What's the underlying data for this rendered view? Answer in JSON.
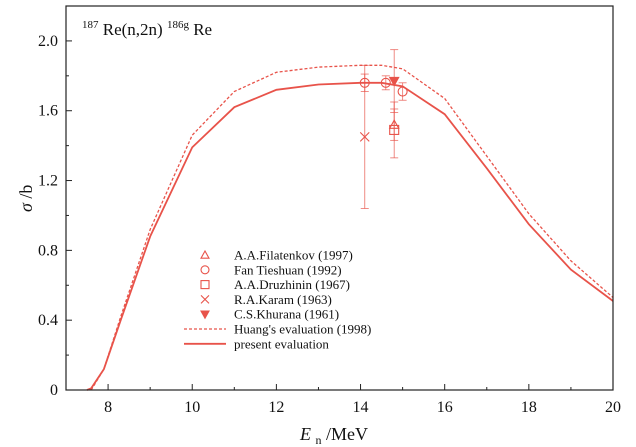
{
  "chart_data": {
    "type": "line",
    "title_parts": {
      "sup1": "187",
      "mid": "Re(n,2n)",
      "sup2": "186g",
      "end": "Re"
    },
    "xlabel": {
      "main": "E",
      "sub": "n",
      "unit": "/MeV"
    },
    "ylabel": {
      "main": "σ",
      "unit": "/b"
    },
    "xlim": [
      7,
      20
    ],
    "ylim": [
      0,
      2.2
    ],
    "xticks": [
      8,
      10,
      12,
      14,
      16,
      18,
      20
    ],
    "yticks": [
      0,
      0.4,
      0.8,
      1.2,
      1.6,
      2.0
    ],
    "yticklabels": [
      "0",
      "0.4",
      "0.8",
      "1.2",
      "1.6",
      "2.0"
    ],
    "color": "#e8534a",
    "lines": [
      {
        "name": "Huang's evaluation (1998)",
        "style": "dashed",
        "x": [
          7.6,
          7.9,
          8.3,
          9.0,
          10.0,
          11.0,
          12.0,
          13.0,
          14.0,
          14.5,
          15.0,
          16.0,
          17.0,
          18.0,
          19.0,
          20.0
        ],
        "y": [
          0.0,
          0.12,
          0.42,
          0.92,
          1.46,
          1.71,
          1.82,
          1.85,
          1.86,
          1.86,
          1.84,
          1.67,
          1.34,
          1.01,
          0.74,
          0.53
        ]
      },
      {
        "name": "present evaluation",
        "style": "solid",
        "x": [
          7.5,
          7.6,
          7.9,
          8.3,
          9.0,
          10.0,
          11.0,
          12.0,
          13.0,
          14.0,
          14.5,
          15.0,
          16.0,
          17.0,
          18.0,
          19.0,
          20.0
        ],
        "y": [
          0.0,
          0.01,
          0.12,
          0.4,
          0.88,
          1.39,
          1.62,
          1.72,
          1.75,
          1.76,
          1.76,
          1.74,
          1.58,
          1.27,
          0.95,
          0.69,
          0.51
        ]
      }
    ],
    "points": [
      {
        "name": "A.A.Filatenkov (1997)",
        "marker": "triangle-open",
        "data": [
          {
            "x": 14.8,
            "y": 1.52,
            "err": 0.09
          }
        ]
      },
      {
        "name": "Fan Tieshuan (1992)",
        "marker": "circle-open",
        "data": [
          {
            "x": 14.1,
            "y": 1.76,
            "err": 0.05
          },
          {
            "x": 14.6,
            "y": 1.76,
            "err": 0.04
          },
          {
            "x": 15.0,
            "y": 1.71,
            "err": 0.05
          }
        ]
      },
      {
        "name": "A.A.Druzhinin (1967)",
        "marker": "square-open",
        "data": [
          {
            "x": 14.8,
            "y": 1.49,
            "err": 0.16
          }
        ]
      },
      {
        "name": "R.A.Karam (1963)",
        "marker": "x",
        "data": [
          {
            "x": 14.1,
            "y": 1.45,
            "err": 0.41
          }
        ]
      },
      {
        "name": "C.S.Khurana (1961)",
        "marker": "triangle-down-filled",
        "data": [
          {
            "x": 14.8,
            "y": 1.77,
            "err": 0.18
          }
        ]
      }
    ],
    "legend": {
      "placement": "lower-left-center",
      "entries": [
        {
          "label": "A.A.Filatenkov (1997)",
          "marker": "triangle-open"
        },
        {
          "label": "Fan Tieshuan (1992)",
          "marker": "circle-open"
        },
        {
          "label": "A.A.Druzhinin (1967)",
          "marker": "square-open"
        },
        {
          "label": "R.A.Karam (1963)",
          "marker": "x"
        },
        {
          "label": "C.S.Khurana (1961)",
          "marker": "triangle-down-filled"
        },
        {
          "label": "Huang's evaluation (1998)",
          "marker": "dashed-line"
        },
        {
          "label": "present evaluation",
          "marker": "solid-line"
        }
      ]
    }
  }
}
